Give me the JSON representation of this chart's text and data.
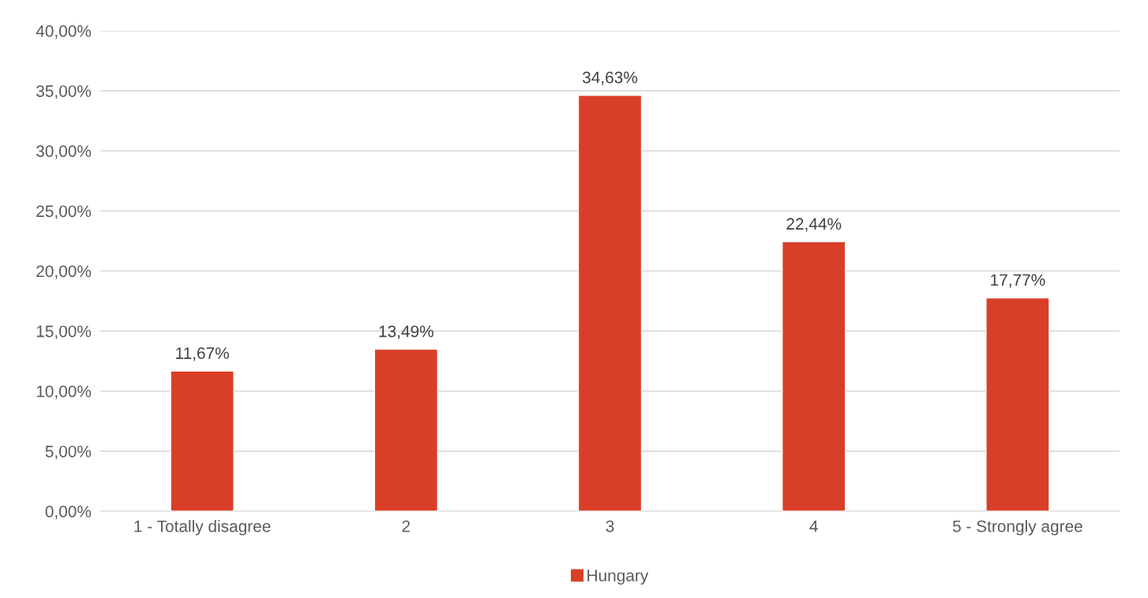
{
  "chart_data": {
    "type": "bar",
    "categories": [
      "1 - Totally disagree",
      "2",
      "3",
      "4",
      "5 - Strongly agree"
    ],
    "series": [
      {
        "name": "Hungary",
        "color": "#d93f28",
        "values": [
          11.67,
          13.49,
          34.63,
          22.44,
          17.77
        ],
        "value_labels": [
          "11,67%",
          "13,49%",
          "34,63%",
          "22,44%",
          "17,77%"
        ]
      }
    ],
    "ylim": [
      0,
      40
    ],
    "yticks": [
      {
        "value": 0,
        "label": "0,00%"
      },
      {
        "value": 5,
        "label": "5,00%"
      },
      {
        "value": 10,
        "label": "10,00%"
      },
      {
        "value": 15,
        "label": "15,00%"
      },
      {
        "value": 20,
        "label": "20,00%"
      },
      {
        "value": 25,
        "label": "25,00%"
      },
      {
        "value": 30,
        "label": "30,00%"
      },
      {
        "value": 35,
        "label": "35,00%"
      },
      {
        "value": 40,
        "label": "40,00%"
      }
    ],
    "grid": "y",
    "legend": "bottom"
  }
}
